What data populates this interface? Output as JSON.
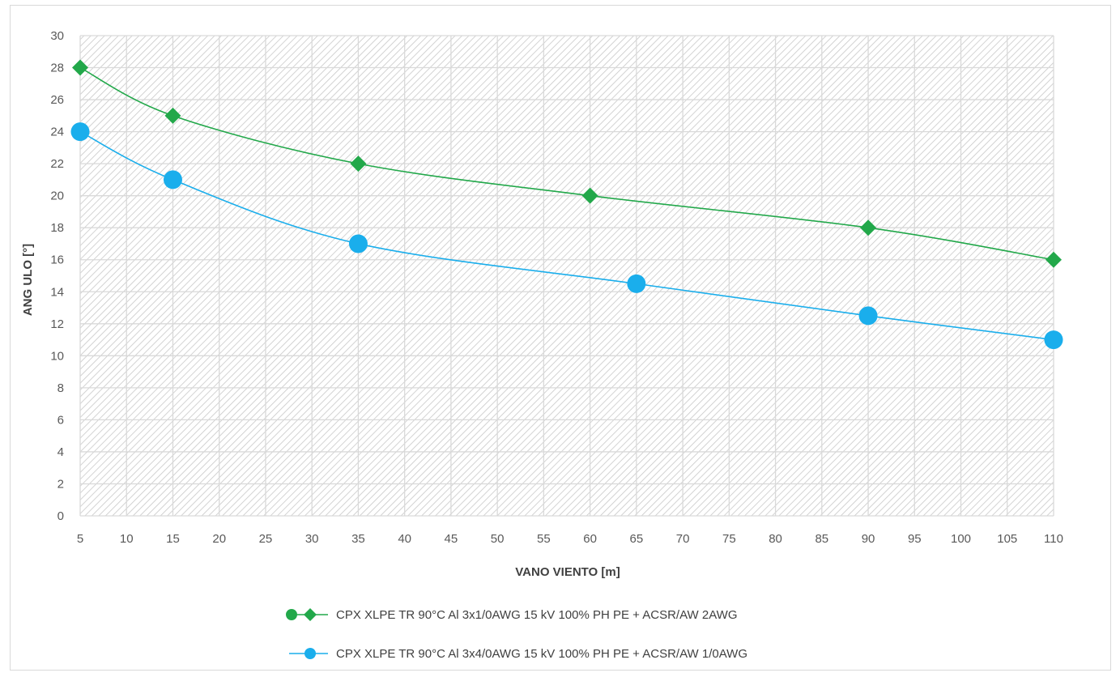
{
  "chart_data": {
    "type": "line",
    "xlabel": "VANO VIENTO [m]",
    "ylabel": "ANG ULO [°]",
    "xlim": [
      5,
      110
    ],
    "ylim": [
      0,
      30
    ],
    "x_ticks": [
      "5",
      "10",
      "15",
      "20",
      "25",
      "30",
      "35",
      "40",
      "45",
      "50",
      "55",
      "60",
      "65",
      "70",
      "75",
      "80",
      "85",
      "90",
      "95",
      "100",
      "105",
      "110"
    ],
    "y_ticks": [
      "0",
      "2",
      "4",
      "6",
      "8",
      "10",
      "12",
      "14",
      "16",
      "18",
      "20",
      "22",
      "24",
      "26",
      "28",
      "30"
    ],
    "grid": true,
    "legend_position": "bottom",
    "series": [
      {
        "name": "CPX XLPE TR 90°C Al 3x1/0AWG 15 kV 100% PH PE + ACSR/AW 2AWG",
        "color": "#22a84a",
        "marker": "diamond",
        "x": [
          5,
          15,
          35,
          60,
          90,
          110
        ],
        "y": [
          28,
          25,
          22,
          20,
          18,
          16
        ]
      },
      {
        "name": "CPX XLPE TR 90°C Al 3x4/0AWG 15 kV 100% PH PE + ACSR/AW 1/0AWG",
        "color": "#1aaeec",
        "marker": "circle",
        "x": [
          5,
          15,
          35,
          65,
          90,
          110
        ],
        "y": [
          24,
          21,
          17,
          14.5,
          12.5,
          11
        ]
      }
    ]
  }
}
